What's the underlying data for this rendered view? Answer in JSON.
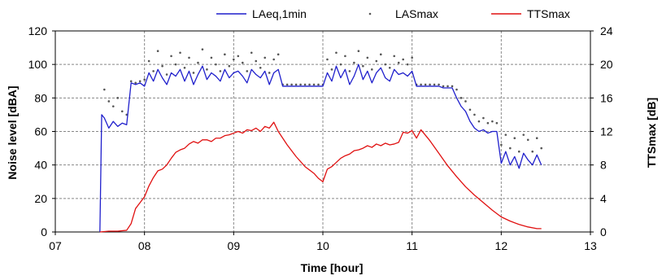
{
  "chart_data": {
    "type": "line",
    "xlabel": "Time [hour]",
    "ylabel": "Noise level [dBA]",
    "y2label": "TTSmax [dB]",
    "xlim": [
      7,
      13
    ],
    "ylim": [
      0,
      120
    ],
    "y2lim": [
      0,
      24
    ],
    "x_ticks": [
      "07",
      "08",
      "09",
      "10",
      "11",
      "12",
      "13"
    ],
    "y_ticks": [
      "0",
      "20",
      "40",
      "60",
      "80",
      "100",
      "120"
    ],
    "y2_ticks": [
      "0",
      "4",
      "8",
      "12",
      "16",
      "20",
      "24"
    ],
    "grid": "dashed",
    "legend_position": "top",
    "colors": {
      "laeq": "#1f1fcc",
      "lasmax": "#555555",
      "tts": "#e01010"
    },
    "series": [
      {
        "name": "LAeq,1min",
        "axis": "left",
        "style": "line",
        "x": [
          7.5,
          7.52,
          7.55,
          7.6,
          7.65,
          7.7,
          7.75,
          7.8,
          7.85,
          7.9,
          7.95,
          8.0,
          8.05,
          8.1,
          8.15,
          8.2,
          8.25,
          8.3,
          8.35,
          8.4,
          8.45,
          8.5,
          8.55,
          8.6,
          8.65,
          8.7,
          8.75,
          8.8,
          8.85,
          8.9,
          8.95,
          9.0,
          9.05,
          9.1,
          9.15,
          9.2,
          9.25,
          9.3,
          9.35,
          9.4,
          9.45,
          9.5,
          9.55,
          9.6,
          9.65,
          9.7,
          9.75,
          9.8,
          9.85,
          9.9,
          9.95,
          10.0,
          10.05,
          10.1,
          10.15,
          10.2,
          10.25,
          10.3,
          10.35,
          10.4,
          10.45,
          10.5,
          10.55,
          10.6,
          10.65,
          10.7,
          10.75,
          10.8,
          10.85,
          10.9,
          10.95,
          11.0,
          11.05,
          11.1,
          11.15,
          11.2,
          11.25,
          11.3,
          11.35,
          11.4,
          11.45,
          11.5,
          11.55,
          11.6,
          11.65,
          11.7,
          11.75,
          11.8,
          11.85,
          11.9,
          11.95,
          12.0,
          12.05,
          12.1,
          12.15,
          12.2,
          12.25,
          12.3,
          12.35,
          12.4,
          12.45
        ],
        "y": [
          0,
          70,
          68,
          62,
          66,
          63,
          65,
          64,
          89,
          88,
          89,
          87,
          95,
          90,
          97,
          92,
          88,
          95,
          93,
          97,
          90,
          96,
          88,
          94,
          99,
          91,
          95,
          93,
          90,
          97,
          92,
          95,
          96,
          93,
          89,
          97,
          94,
          92,
          96,
          88,
          95,
          97,
          87,
          87,
          87,
          87,
          87,
          87,
          87,
          87,
          87,
          87,
          95,
          90,
          99,
          92,
          97,
          88,
          93,
          100,
          91,
          96,
          89,
          95,
          98,
          92,
          90,
          97,
          94,
          95,
          93,
          96,
          87,
          87,
          87,
          87,
          87,
          87,
          86,
          86,
          86,
          80,
          75,
          72,
          66,
          62,
          60,
          61,
          59,
          60,
          60,
          41,
          48,
          40,
          45,
          38,
          47,
          43,
          40,
          46,
          40
        ]
      },
      {
        "name": "LASmax",
        "axis": "left",
        "style": "dots",
        "x": [
          7.55,
          7.6,
          7.65,
          7.7,
          7.75,
          7.8,
          7.85,
          7.9,
          7.95,
          8.0,
          8.05,
          8.1,
          8.15,
          8.2,
          8.25,
          8.3,
          8.35,
          8.4,
          8.45,
          8.5,
          8.55,
          8.6,
          8.65,
          8.7,
          8.75,
          8.8,
          8.85,
          8.9,
          8.95,
          9.0,
          9.05,
          9.1,
          9.15,
          9.2,
          9.25,
          9.3,
          9.35,
          9.4,
          9.45,
          9.5,
          9.55,
          9.6,
          9.65,
          9.7,
          9.75,
          9.8,
          9.85,
          9.9,
          9.95,
          10.0,
          10.05,
          10.1,
          10.15,
          10.2,
          10.25,
          10.3,
          10.35,
          10.4,
          10.45,
          10.5,
          10.55,
          10.6,
          10.65,
          10.7,
          10.75,
          10.8,
          10.85,
          10.9,
          10.95,
          11.0,
          11.05,
          11.1,
          11.15,
          11.2,
          11.25,
          11.3,
          11.35,
          11.4,
          11.45,
          11.5,
          11.55,
          11.6,
          11.65,
          11.7,
          11.75,
          11.8,
          11.85,
          11.9,
          11.95,
          12.0,
          12.05,
          12.1,
          12.15,
          12.2,
          12.25,
          12.3,
          12.35,
          12.4,
          12.45
        ],
        "y": [
          85,
          78,
          75,
          80,
          72,
          70,
          90,
          89,
          90,
          91,
          102,
          96,
          108,
          99,
          94,
          105,
          100,
          107,
          98,
          104,
          95,
          101,
          109,
          97,
          104,
          100,
          96,
          106,
          99,
          103,
          105,
          101,
          96,
          107,
          102,
          98,
          104,
          95,
          103,
          106,
          88,
          88,
          88,
          88,
          88,
          88,
          88,
          88,
          88,
          88,
          103,
          97,
          107,
          100,
          105,
          96,
          101,
          108,
          99,
          104,
          97,
          102,
          106,
          100,
          98,
          105,
          101,
          103,
          100,
          104,
          88,
          88,
          88,
          88,
          88,
          88,
          87,
          87,
          87,
          85,
          80,
          78,
          73,
          70,
          66,
          68,
          65,
          66,
          65,
          52,
          58,
          50,
          56,
          48,
          58,
          55,
          48,
          56,
          50
        ]
      },
      {
        "name": "TTSmax",
        "axis": "right",
        "style": "line",
        "x": [
          7.5,
          7.6,
          7.7,
          7.8,
          7.85,
          7.9,
          7.95,
          8.0,
          8.05,
          8.1,
          8.15,
          8.2,
          8.25,
          8.3,
          8.35,
          8.4,
          8.45,
          8.5,
          8.55,
          8.6,
          8.65,
          8.7,
          8.75,
          8.8,
          8.85,
          8.9,
          8.95,
          9.0,
          9.05,
          9.1,
          9.15,
          9.2,
          9.25,
          9.3,
          9.35,
          9.4,
          9.45,
          9.5,
          9.6,
          9.7,
          9.8,
          9.9,
          9.95,
          10.0,
          10.05,
          10.1,
          10.15,
          10.2,
          10.25,
          10.3,
          10.35,
          10.4,
          10.45,
          10.5,
          10.55,
          10.6,
          10.65,
          10.7,
          10.75,
          10.8,
          10.85,
          10.9,
          10.95,
          11.0,
          11.05,
          11.1,
          11.2,
          11.3,
          11.4,
          11.5,
          11.6,
          11.7,
          11.8,
          11.9,
          12.0,
          12.1,
          12.2,
          12.3,
          12.4,
          12.45
        ],
        "y": [
          0,
          0.1,
          0.1,
          0.2,
          1.0,
          2.8,
          3.5,
          4.2,
          5.5,
          6.5,
          7.3,
          7.5,
          8.0,
          8.8,
          9.5,
          9.8,
          10.0,
          10.5,
          10.8,
          10.6,
          11.0,
          11.0,
          10.8,
          11.2,
          11.2,
          11.5,
          11.6,
          11.8,
          12.0,
          11.8,
          12.2,
          12.1,
          12.4,
          12.0,
          12.6,
          12.4,
          13.1,
          12.0,
          10.4,
          9.0,
          7.8,
          7.0,
          6.4,
          6.0,
          7.5,
          7.8,
          8.3,
          8.8,
          9.1,
          9.3,
          9.7,
          9.8,
          10.0,
          10.3,
          10.1,
          10.5,
          10.3,
          10.6,
          10.4,
          10.5,
          10.7,
          11.9,
          11.8,
          12.1,
          11.2,
          12.2,
          10.9,
          9.4,
          7.9,
          6.6,
          5.4,
          4.4,
          3.5,
          2.6,
          1.8,
          1.3,
          0.9,
          0.6,
          0.4,
          0.4
        ]
      }
    ]
  }
}
